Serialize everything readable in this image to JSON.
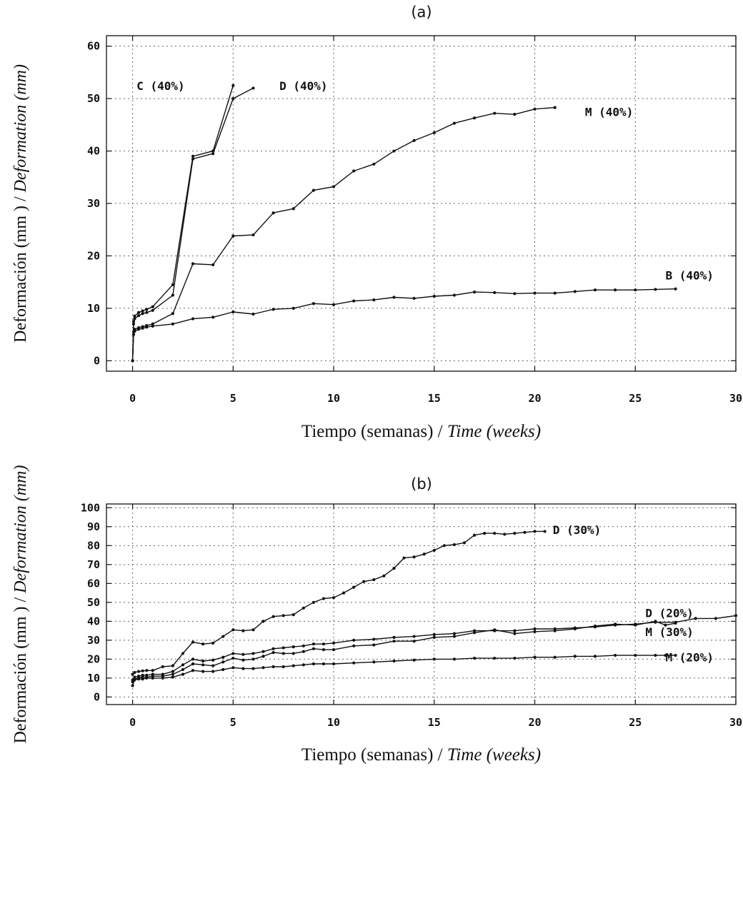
{
  "chart_data": [
    {
      "type": "line",
      "panel_label": "(a)",
      "xlabel_main": "Tiempo (semanas) / ",
      "xlabel_italic": "Time (weeks)",
      "ylabel_main": "Deformación (mm ) / ",
      "ylabel_italic": "Deformation (mm)",
      "xlim": [
        -1.3,
        30
      ],
      "ylim": [
        -2,
        62
      ],
      "xticks": [
        0,
        5,
        10,
        15,
        20,
        25,
        30
      ],
      "yticks": [
        0,
        10,
        20,
        30,
        40,
        50,
        60
      ],
      "xtick_labels": [
        "0",
        "5",
        "10",
        "15",
        "20",
        "25",
        "30"
      ],
      "ytick_labels": [
        "0",
        "10",
        "20",
        "30",
        "40",
        "50",
        "60"
      ],
      "grid": true,
      "series": [
        {
          "name": "C (40%)",
          "label_at": [
            0.2,
            52.5
          ],
          "x": [
            0,
            0.05,
            0.1,
            0.3,
            0.5,
            0.7,
            1,
            2,
            3,
            4,
            5
          ],
          "y": [
            0,
            7.5,
            8.5,
            9.2,
            9.5,
            9.8,
            10.3,
            14.5,
            39,
            40,
            52.5
          ]
        },
        {
          "name": "D (40%)",
          "label_at": [
            7.3,
            52.5
          ],
          "x": [
            0,
            0.05,
            0.1,
            0.3,
            0.5,
            0.7,
            1,
            2,
            3,
            4,
            5,
            6
          ],
          "y": [
            0,
            7,
            8,
            8.6,
            9,
            9.2,
            9.6,
            12.5,
            38.5,
            39.5,
            50,
            52
          ]
        },
        {
          "name": "M (40%)",
          "label_at": [
            22.5,
            47.5
          ],
          "x": [
            0,
            0.05,
            0.1,
            0.3,
            0.5,
            0.7,
            1,
            2,
            3,
            4,
            5,
            6,
            7,
            8,
            9,
            10,
            11,
            12,
            13,
            14,
            15,
            16,
            17,
            18,
            19,
            20,
            21
          ],
          "y": [
            0,
            5.5,
            6,
            6.3,
            6.5,
            6.7,
            7,
            9,
            18.5,
            18.3,
            23.8,
            24,
            28.2,
            29,
            32.5,
            33.2,
            36.2,
            37.5,
            40,
            42,
            43.5,
            45.3,
            46.3,
            47.2,
            47,
            48,
            48.3
          ]
        },
        {
          "name": "B (40%)",
          "label_at": [
            26.5,
            16.3
          ],
          "x": [
            0,
            0.05,
            0.1,
            0.3,
            0.5,
            0.7,
            1,
            2,
            3,
            4,
            5,
            6,
            7,
            8,
            9,
            10,
            11,
            12,
            13,
            14,
            15,
            16,
            17,
            18,
            19,
            20,
            21,
            22,
            23,
            24,
            25,
            26,
            27
          ],
          "y": [
            0,
            5,
            5.6,
            6,
            6.2,
            6.4,
            6.6,
            7,
            8,
            8.3,
            9.3,
            8.9,
            9.8,
            10,
            10.9,
            10.7,
            11.4,
            11.6,
            12.1,
            11.9,
            12.3,
            12.5,
            13.1,
            13,
            12.8,
            12.9,
            12.9,
            13.2,
            13.5,
            13.5,
            13.5,
            13.6,
            13.7
          ]
        }
      ]
    },
    {
      "type": "line",
      "panel_label": "(b)",
      "xlabel_main": "Tiempo (semanas) / ",
      "xlabel_italic": "Time (weeks)",
      "ylabel_main": "Deformación (mm ) / ",
      "ylabel_italic": "Deformation (mm)",
      "xlim": [
        -1.3,
        30
      ],
      "ylim": [
        -4,
        102
      ],
      "xticks": [
        0,
        5,
        10,
        15,
        20,
        25,
        30
      ],
      "yticks": [
        0,
        10,
        20,
        30,
        40,
        50,
        60,
        70,
        80,
        90,
        100
      ],
      "xtick_labels": [
        "0",
        "5",
        "10",
        "15",
        "20",
        "25",
        "30"
      ],
      "ytick_labels": [
        "0",
        "10",
        "20",
        "30",
        "40",
        "50",
        "60",
        "70",
        "80",
        "90",
        "100"
      ],
      "grid": true,
      "series": [
        {
          "name": "D (30%)",
          "label_at": [
            20.9,
            88.5
          ],
          "x": [
            0,
            0.1,
            0.3,
            0.5,
            0.7,
            1,
            1.5,
            2,
            2.5,
            3,
            3.5,
            4,
            4.5,
            5,
            5.5,
            6,
            6.5,
            7,
            7.5,
            8,
            8.5,
            9,
            9.5,
            10,
            10.5,
            11,
            11.5,
            12,
            12.5,
            13,
            13.5,
            14,
            14.5,
            15,
            15.5,
            16,
            16.5,
            17,
            17.5,
            18,
            18.5,
            19,
            19.5,
            20,
            20.5
          ],
          "y": [
            12,
            13,
            13.5,
            13.8,
            14,
            14,
            16,
            16.5,
            23,
            29,
            28,
            28.5,
            32,
            35.5,
            35,
            35.5,
            40,
            42.5,
            43,
            43.5,
            47,
            50,
            52,
            52.5,
            55,
            58,
            61,
            62,
            64,
            68,
            73.5,
            74,
            75.5,
            77.5,
            80,
            80.5,
            81.5,
            85.5,
            86.5,
            86.5,
            86,
            86.5,
            87,
            87.5,
            87.5
          ]
        },
        {
          "name": "D (20%)",
          "label_at": [
            25.5,
            44.5
          ],
          "x": [
            0,
            0.1,
            0.3,
            0.5,
            0.7,
            1,
            1.5,
            2,
            2.5,
            3,
            3.5,
            4,
            4.5,
            5,
            5.5,
            6,
            6.5,
            7,
            7.5,
            8,
            8.5,
            9,
            9.5,
            10,
            11,
            12,
            13,
            14,
            15,
            16,
            17,
            18,
            19,
            20,
            21,
            22,
            23,
            24,
            25,
            26,
            27,
            28,
            29,
            30
          ],
          "y": [
            9,
            10.5,
            11,
            11.5,
            11.5,
            12,
            12,
            13.5,
            17,
            20,
            19,
            19.5,
            21,
            23,
            22.5,
            23,
            24,
            25.5,
            26,
            26.5,
            27,
            28,
            28,
            28.5,
            30,
            30.5,
            31.5,
            32,
            33,
            33.5,
            35,
            35,
            35,
            36,
            36,
            36.5,
            37,
            38,
            38.5,
            39.5,
            39.5,
            41.5,
            41.5,
            43
          ]
        },
        {
          "name": "M (30%)",
          "label_at": [
            25.5,
            34.5
          ],
          "x": [
            0,
            0.1,
            0.3,
            0.5,
            0.7,
            1,
            1.5,
            2,
            2.5,
            3,
            3.5,
            4,
            4.5,
            5,
            5.5,
            6,
            6.5,
            7,
            7.5,
            8,
            8.5,
            9,
            9.5,
            10,
            11,
            12,
            13,
            14,
            15,
            16,
            17,
            18,
            19,
            20,
            21,
            22,
            23,
            24,
            25,
            26,
            26.5,
            27
          ],
          "y": [
            8,
            9.5,
            10,
            10.5,
            10.5,
            11,
            11,
            12,
            14.5,
            17.5,
            17,
            16.5,
            18.5,
            20.5,
            19.5,
            20,
            21.5,
            23.5,
            23,
            23,
            24,
            25.5,
            25,
            25,
            27,
            27.5,
            29.5,
            29.5,
            31.5,
            32,
            34,
            35.5,
            33.5,
            34.5,
            35,
            36,
            37.5,
            38.5,
            38,
            40,
            38,
            39
          ]
        },
        {
          "name": "M (20%)",
          "label_at": [
            26.5,
            21
          ],
          "x": [
            0,
            0.1,
            0.3,
            0.5,
            0.7,
            1,
            1.5,
            2,
            2.5,
            3,
            3.5,
            4,
            4.5,
            5,
            5.5,
            6,
            6.5,
            7,
            7.5,
            8,
            8.5,
            9,
            9.5,
            10,
            11,
            12,
            13,
            14,
            15,
            16,
            17,
            18,
            19,
            20,
            21,
            22,
            23,
            24,
            25,
            26,
            26.5,
            27
          ],
          "y": [
            6,
            9,
            9.5,
            9.5,
            10,
            10,
            10,
            10.5,
            12,
            14,
            13.5,
            13.5,
            14.5,
            15.5,
            15,
            15,
            15.5,
            16,
            16,
            16.5,
            17,
            17.5,
            17.5,
            17.5,
            18,
            18.5,
            19,
            19.5,
            20,
            20,
            20.5,
            20.5,
            20.5,
            21,
            21,
            21.5,
            21.5,
            22,
            22,
            22,
            22,
            22
          ]
        }
      ]
    }
  ]
}
